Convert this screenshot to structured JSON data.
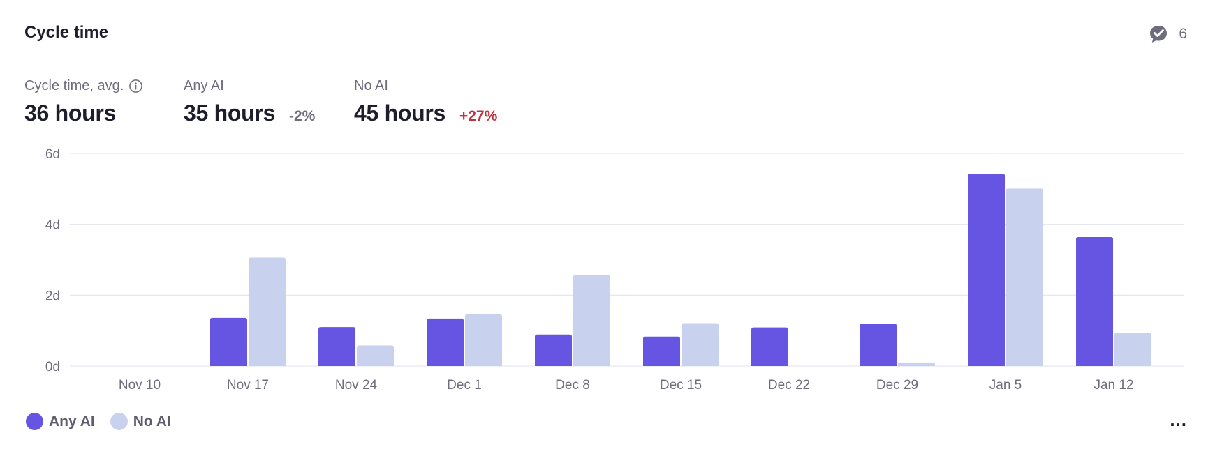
{
  "header": {
    "title": "Cycle time",
    "badge_count": "6",
    "badge_icon": "check-comment-icon"
  },
  "metrics": [
    {
      "label": "Cycle time, avg.",
      "value": "36 hours",
      "delta": "",
      "info_icon": "info-icon"
    },
    {
      "label": "Any AI",
      "value": "35 hours",
      "delta": "-2%"
    },
    {
      "label": "No AI",
      "value": "45 hours",
      "delta": "+27%"
    }
  ],
  "colors": {
    "any_ai": "#6654e3",
    "no_ai": "#c8d2ee",
    "grid": "#e7e7f4",
    "tick": "#6d6d7d",
    "negative_delta": "#c2343f"
  },
  "chart_data": {
    "type": "bar",
    "categories": [
      "Nov 10",
      "Nov 17",
      "Nov 24",
      "Dec 1",
      "Dec 8",
      "Dec 15",
      "Dec 22",
      "Dec 29",
      "Jan 5",
      "Jan 12"
    ],
    "series": [
      {
        "name": "Any AI",
        "values": [
          0,
          1.36,
          1.1,
          1.34,
          0.89,
          0.83,
          1.09,
          1.2,
          5.43,
          3.64
        ]
      },
      {
        "name": "No AI",
        "values": [
          0,
          3.06,
          0.58,
          1.46,
          2.57,
          1.21,
          0,
          0.1,
          5.01,
          0.94
        ]
      }
    ],
    "y_ticks": [
      "0d",
      "2d",
      "4d",
      "6d"
    ],
    "ylim": [
      0,
      6
    ],
    "grid": true,
    "legend_position": "bottom-left"
  },
  "legend": [
    {
      "label": "Any AI"
    },
    {
      "label": "No AI"
    }
  ],
  "footer": {
    "more_label": "..."
  }
}
